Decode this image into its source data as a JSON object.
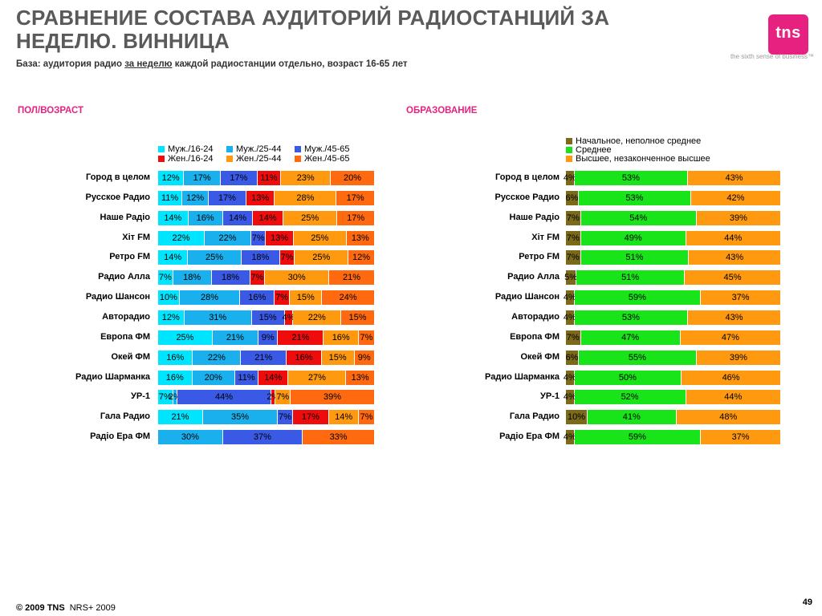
{
  "header": {
    "title": "СРАВНЕНИЕ СОСТАВА АУДИТОРИЙ РАДИОСТАНЦИЙ ЗА НЕДЕЛЮ. ВИННИЦА",
    "base_prefix": "База: аудитория радио ",
    "base_underlined": "за неделю",
    "base_suffix": " каждой радиостанции отдельно, возраст 16-65 лет"
  },
  "logo": {
    "text": "tns",
    "tagline": "the sixth sense of business™",
    "color": "#e6217f"
  },
  "footer": {
    "copyright": "© 2009 TNS",
    "source": "NRS+ 2009",
    "page_number": "49"
  },
  "colors": {
    "muz_16_24": "#00e5ff",
    "muz_25_44": "#1ab0ee",
    "muz_45_65": "#3a5ae6",
    "zhen_16_24": "#ee0c0c",
    "zhen_25_44": "#ff9a10",
    "zhen_45_65": "#ff6a10",
    "edu_primary": "#7a6a1a",
    "edu_secondary": "#19e319",
    "edu_higher": "#ff9a10",
    "accent": "#e6217f"
  },
  "chart_data": [
    {
      "type": "bar",
      "orientation": "horizontal",
      "stacked": true,
      "title": "ПОЛ/ВОЗРАСТ",
      "unit": "%",
      "categories": [
        "Город в целом",
        "Русское Радио",
        "Наше Радіо",
        "Хіт FM",
        "Ретро FM",
        "Радио Алла",
        "Радио Шансон",
        "Авторадио",
        "Европа ФМ",
        "Окей ФМ",
        "Радио Шарманка",
        "УР-1",
        "Гала Радио",
        "Радіо Ера ФМ"
      ],
      "series": [
        {
          "name": "Муж./16-24",
          "color": "#00e5ff",
          "values": [
            12,
            11,
            14,
            22,
            14,
            7,
            10,
            12,
            25,
            16,
            16,
            7,
            21,
            0
          ]
        },
        {
          "name": "Муж./25-44",
          "color": "#1ab0ee",
          "values": [
            17,
            12,
            16,
            22,
            25,
            18,
            28,
            31,
            21,
            22,
            20,
            2,
            35,
            30
          ]
        },
        {
          "name": "Муж./45-65",
          "color": "#3a5ae6",
          "values": [
            17,
            17,
            14,
            7,
            18,
            18,
            16,
            15,
            9,
            21,
            11,
            44,
            7,
            37
          ]
        },
        {
          "name": "Жен./16-24",
          "color": "#ee0c0c",
          "values": [
            11,
            13,
            14,
            13,
            7,
            7,
            7,
            4,
            21,
            16,
            14,
            2,
            17,
            0
          ]
        },
        {
          "name": "Жен./25-44",
          "color": "#ff9a10",
          "values": [
            23,
            28,
            25,
            25,
            25,
            30,
            15,
            22,
            16,
            15,
            27,
            7,
            14,
            0
          ]
        },
        {
          "name": "Жен./45-65",
          "color": "#ff6a10",
          "values": [
            20,
            17,
            17,
            13,
            12,
            21,
            24,
            15,
            7,
            9,
            13,
            39,
            7,
            33
          ]
        }
      ],
      "legend_position": "top"
    },
    {
      "type": "bar",
      "orientation": "horizontal",
      "stacked": true,
      "title": "ОБРАЗОВАНИЕ",
      "unit": "%",
      "categories": [
        "Город в целом",
        "Русское Радио",
        "Наше Радіо",
        "Хіт FM",
        "Ретро FM",
        "Радио Алла",
        "Радио Шансон",
        "Авторадио",
        "Европа ФМ",
        "Окей ФМ",
        "Радио Шарманка",
        "УР-1",
        "Гала Радио",
        "Радіо Ера ФМ"
      ],
      "series": [
        {
          "name": "Начальное, неполное среднее",
          "color": "#7a6a1a",
          "values": [
            4,
            6,
            7,
            7,
            7,
            5,
            4,
            4,
            7,
            6,
            4,
            4,
            10,
            4
          ]
        },
        {
          "name": "Среднее",
          "color": "#19e319",
          "values": [
            53,
            53,
            54,
            49,
            51,
            51,
            59,
            53,
            47,
            55,
            50,
            52,
            41,
            59
          ]
        },
        {
          "name": "Высшее, незаконченное высшее",
          "color": "#ff9a10",
          "values": [
            43,
            42,
            39,
            44,
            43,
            45,
            37,
            43,
            47,
            39,
            46,
            44,
            48,
            37
          ]
        }
      ],
      "legend_position": "top"
    }
  ]
}
